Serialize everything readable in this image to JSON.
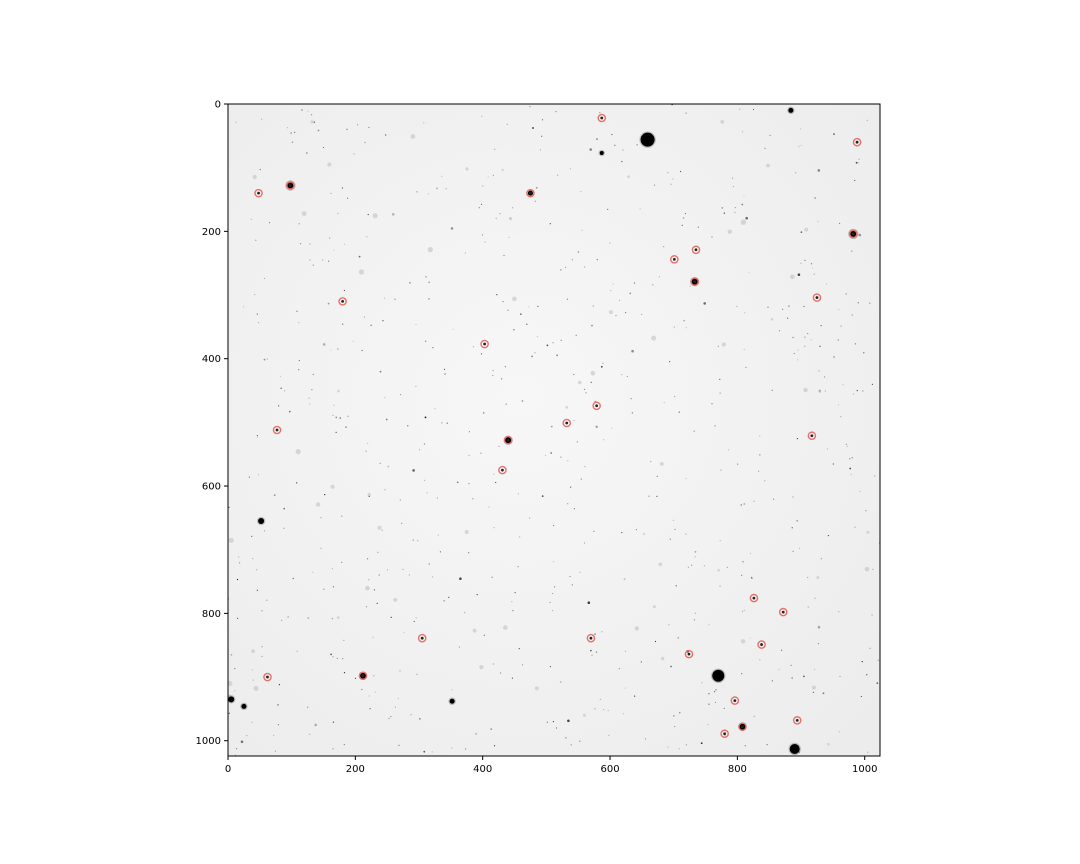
{
  "chart_data": {
    "type": "scatter",
    "title": "",
    "xlabel": "",
    "ylabel": "",
    "xlim": [
      0,
      1024
    ],
    "ylim": [
      1024,
      0
    ],
    "colormap": "grayscale-inverted",
    "marker_color": "#e8706a",
    "x_ticks": [
      "0",
      "200",
      "400",
      "600",
      "800",
      "1000"
    ],
    "y_ticks": [
      "0",
      "200",
      "400",
      "600",
      "800",
      "1000"
    ],
    "bright_sources": [
      {
        "x": 98,
        "y": 128,
        "r": 4
      },
      {
        "x": 659,
        "y": 56,
        "r": 7
      },
      {
        "x": 982,
        "y": 204,
        "r": 4
      },
      {
        "x": 733,
        "y": 279,
        "r": 3.5
      },
      {
        "x": 440,
        "y": 528,
        "r": 3.5
      },
      {
        "x": 770,
        "y": 898,
        "r": 6
      },
      {
        "x": 890,
        "y": 1013,
        "r": 5
      },
      {
        "x": 52,
        "y": 655,
        "r": 3
      },
      {
        "x": 5,
        "y": 935,
        "r": 3
      },
      {
        "x": 25,
        "y": 946,
        "r": 2.5
      },
      {
        "x": 352,
        "y": 938,
        "r": 2.5
      },
      {
        "x": 212,
        "y": 898,
        "r": 3
      },
      {
        "x": 808,
        "y": 978,
        "r": 3
      },
      {
        "x": 884,
        "y": 10,
        "r": 2.5
      },
      {
        "x": 475,
        "y": 140,
        "r": 2.5
      },
      {
        "x": 587,
        "y": 77,
        "r": 2
      }
    ],
    "points": [
      {
        "x": 587,
        "y": 22
      },
      {
        "x": 988,
        "y": 60
      },
      {
        "x": 98,
        "y": 128
      },
      {
        "x": 48,
        "y": 140
      },
      {
        "x": 475,
        "y": 140
      },
      {
        "x": 982,
        "y": 204
      },
      {
        "x": 735,
        "y": 229
      },
      {
        "x": 701,
        "y": 244
      },
      {
        "x": 733,
        "y": 279
      },
      {
        "x": 925,
        "y": 304
      },
      {
        "x": 180,
        "y": 310
      },
      {
        "x": 403,
        "y": 377
      },
      {
        "x": 579,
        "y": 474
      },
      {
        "x": 532,
        "y": 501
      },
      {
        "x": 77,
        "y": 512
      },
      {
        "x": 917,
        "y": 521
      },
      {
        "x": 440,
        "y": 528
      },
      {
        "x": 431,
        "y": 575
      },
      {
        "x": 826,
        "y": 776
      },
      {
        "x": 872,
        "y": 798
      },
      {
        "x": 305,
        "y": 839
      },
      {
        "x": 570,
        "y": 839
      },
      {
        "x": 838,
        "y": 849
      },
      {
        "x": 724,
        "y": 864
      },
      {
        "x": 62,
        "y": 900
      },
      {
        "x": 212,
        "y": 898
      },
      {
        "x": 796,
        "y": 937
      },
      {
        "x": 894,
        "y": 968
      },
      {
        "x": 808,
        "y": 978
      },
      {
        "x": 780,
        "y": 989
      }
    ]
  }
}
